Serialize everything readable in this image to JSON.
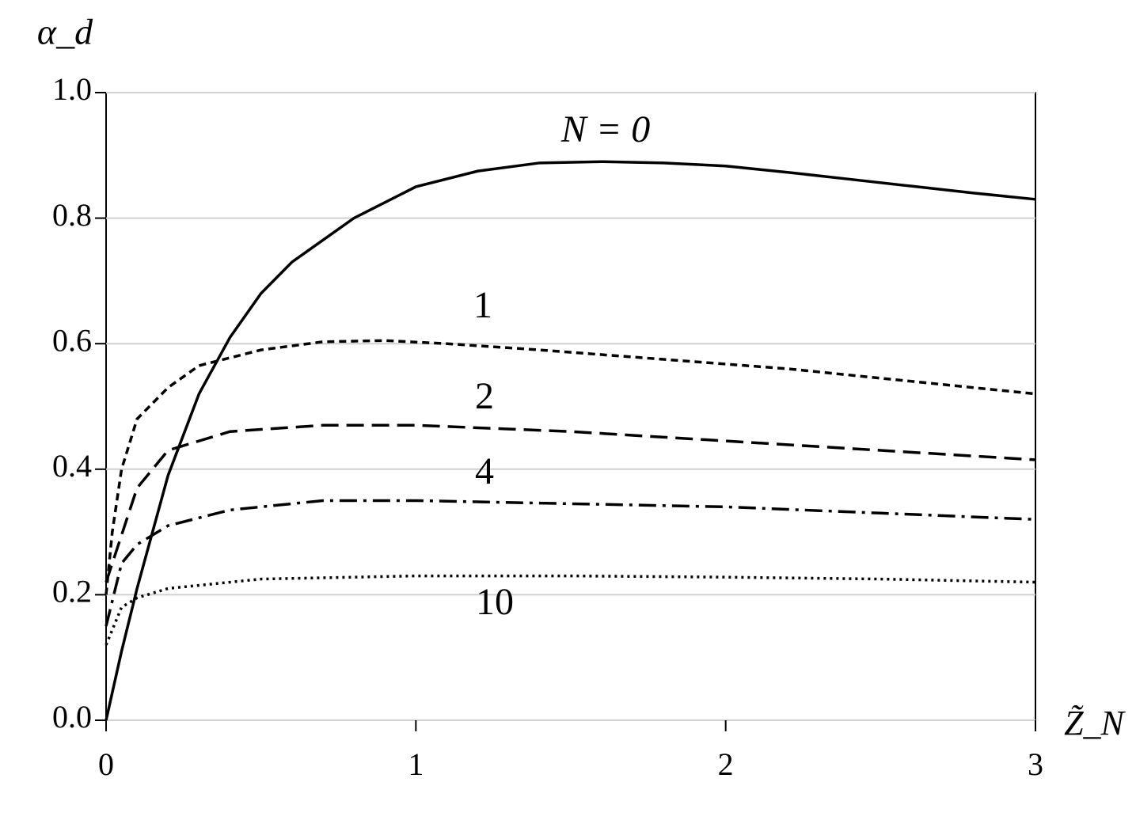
{
  "chart_data": {
    "type": "line",
    "y_label": "α_d",
    "x_label": "Z̃_N",
    "xlim": [
      0,
      3
    ],
    "xticks": [
      0,
      1,
      2,
      3
    ],
    "ylim": [
      0,
      1
    ],
    "yticks": [
      {
        "value": 0,
        "label": "0.0"
      },
      0.2,
      0.4,
      0.6,
      0.8,
      {
        "value": 1,
        "label": "1.0"
      }
    ],
    "grid": true,
    "series": [
      {
        "name": "N = 0",
        "color": "#000000",
        "dash": "solid",
        "x": [
          0,
          0.05,
          0.1,
          0.2,
          0.3,
          0.4,
          0.5,
          0.6,
          0.8,
          1.0,
          1.2,
          1.4,
          1.6,
          1.8,
          2.0,
          2.2,
          2.4,
          2.6,
          2.8,
          3.0
        ],
        "values": [
          0,
          0.11,
          0.21,
          0.39,
          0.52,
          0.61,
          0.68,
          0.73,
          0.8,
          0.85,
          0.875,
          0.888,
          0.89,
          0.888,
          0.883,
          0.873,
          0.862,
          0.851,
          0.84,
          0.83
        ]
      },
      {
        "name": "1",
        "color": "#000000",
        "dash": "dense",
        "x": [
          0,
          0.02,
          0.05,
          0.1,
          0.2,
          0.3,
          0.5,
          0.7,
          0.9,
          1.1,
          1.4,
          1.8,
          2.2,
          2.6,
          3.0
        ],
        "values": [
          0.2,
          0.3,
          0.4,
          0.48,
          0.53,
          0.565,
          0.59,
          0.603,
          0.605,
          0.6,
          0.59,
          0.575,
          0.56,
          0.54,
          0.52
        ]
      },
      {
        "name": "2",
        "color": "#000000",
        "dash": "dashed",
        "x": [
          0,
          0.02,
          0.1,
          0.2,
          0.4,
          0.7,
          1.0,
          1.5,
          2.0,
          2.5,
          3.0
        ],
        "values": [
          0.22,
          0.25,
          0.37,
          0.43,
          0.46,
          0.47,
          0.47,
          0.46,
          0.445,
          0.43,
          0.415
        ]
      },
      {
        "name": "4",
        "color": "#000000",
        "dash": "dashdot",
        "x": [
          0,
          0.05,
          0.1,
          0.2,
          0.4,
          0.7,
          1.0,
          1.5,
          2.0,
          2.5,
          3.0
        ],
        "values": [
          0.15,
          0.25,
          0.28,
          0.31,
          0.335,
          0.35,
          0.35,
          0.345,
          0.34,
          0.33,
          0.32
        ]
      },
      {
        "name": "10",
        "color": "#000000",
        "dash": "dotted",
        "x": [
          0,
          0.05,
          0.1,
          0.2,
          0.5,
          1.0,
          1.5,
          2.0,
          2.5,
          3.0
        ],
        "values": [
          0.12,
          0.18,
          0.195,
          0.21,
          0.225,
          0.23,
          0.23,
          0.228,
          0.225,
          0.22
        ]
      }
    ]
  }
}
